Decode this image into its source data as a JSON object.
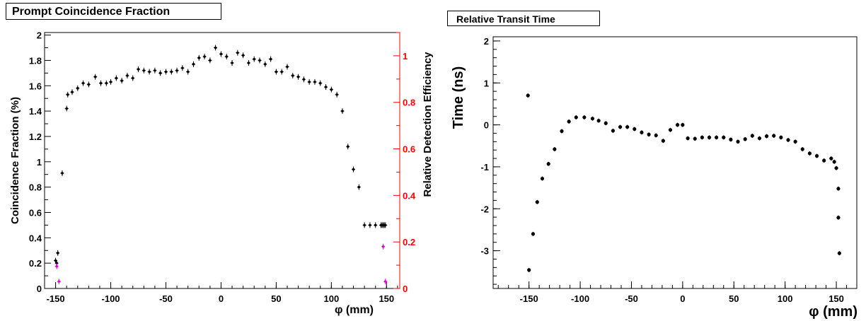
{
  "panels": {
    "left_title": "Prompt Coincidence Fraction",
    "right_title": "Relative Transit Time"
  },
  "colors": {
    "primary": "#000000",
    "secondary_axis": "#ff0000",
    "magenta_series": "#e000e0"
  },
  "chart_data": [
    {
      "type": "scatter",
      "title": "Prompt Coincidence Fraction",
      "xlabel": "φ (mm)",
      "ylabel": "Coincidence Fraction (%)",
      "y2label": "Relative Detection Efficiency",
      "xlim": [
        -160,
        162
      ],
      "ylim": [
        0,
        2.02
      ],
      "y2lim": [
        0,
        1.1
      ],
      "xticks": [
        -150,
        -100,
        -50,
        0,
        50,
        100,
        150
      ],
      "yticks": [
        0,
        0.2,
        0.4,
        0.6,
        0.8,
        1,
        1.2,
        1.4,
        1.6,
        1.8,
        2
      ],
      "y2ticks": [
        0,
        0.2,
        0.4,
        0.6,
        0.8,
        1
      ],
      "series": [
        {
          "axis": "left",
          "color": "#000000",
          "x": [
            -150,
            -149,
            -148,
            -144,
            -140,
            -139,
            -135,
            -130,
            -125,
            -120,
            -114,
            -109,
            -104,
            -100,
            -95,
            -90,
            -85,
            -80,
            -75,
            -70,
            -65,
            -60,
            -55,
            -50,
            -45,
            -40,
            -35,
            -30,
            -25,
            -20,
            -15,
            -10,
            -5,
            0,
            5,
            10,
            15,
            20,
            25,
            30,
            35,
            40,
            45,
            50,
            55,
            60,
            65,
            70,
            75,
            80,
            85,
            90,
            95,
            100,
            105,
            110,
            115,
            120,
            125,
            130,
            135,
            140,
            145,
            146,
            147,
            148,
            149
          ],
          "y": [
            0.22,
            0.2,
            0.28,
            0.91,
            1.42,
            1.53,
            1.55,
            1.58,
            1.62,
            1.61,
            1.67,
            1.62,
            1.62,
            1.63,
            1.66,
            1.64,
            1.68,
            1.66,
            1.73,
            1.72,
            1.71,
            1.72,
            1.7,
            1.71,
            1.71,
            1.72,
            1.74,
            1.71,
            1.77,
            1.82,
            1.83,
            1.8,
            1.9,
            1.85,
            1.83,
            1.78,
            1.86,
            1.84,
            1.78,
            1.81,
            1.8,
            1.77,
            1.81,
            1.71,
            1.71,
            1.75,
            1.68,
            1.67,
            1.65,
            1.63,
            1.63,
            1.62,
            1.59,
            1.57,
            1.53,
            1.4,
            1.12,
            0.94,
            0.8,
            0.5,
            0.5,
            0.5,
            0.5,
            0.5,
            0.5,
            0.5,
            0.5
          ]
        },
        {
          "axis": "right",
          "color": "#e000e0",
          "x": [
            -149,
            -147,
            147,
            149
          ],
          "y": [
            0.095,
            0.03,
            0.18,
            0.03
          ]
        }
      ]
    },
    {
      "type": "scatter",
      "title": "Relative Transit Time",
      "xlabel": "φ (mm)",
      "ylabel": "Time (ns)",
      "xlim": [
        -185,
        170
      ],
      "ylim": [
        -3.9,
        2.1
      ],
      "xticks": [
        -150,
        -100,
        -50,
        0,
        50,
        100,
        150
      ],
      "yticks": [
        -3,
        -2,
        -1,
        0,
        1,
        2
      ],
      "series": [
        {
          "color": "#000000",
          "x": [
            -151,
            -150,
            -146,
            -142,
            -137,
            -131,
            -125,
            -118,
            -111,
            -104,
            -96,
            -88,
            -82,
            -75,
            -68,
            -61,
            -54,
            -47,
            -40,
            -33,
            -26,
            -19,
            -12,
            -5,
            0,
            5,
            12,
            19,
            26,
            33,
            40,
            47,
            54,
            61,
            68,
            75,
            82,
            89,
            96,
            103,
            110,
            117,
            124,
            131,
            138,
            145,
            148,
            150,
            152,
            152,
            153
          ],
          "y": [
            0.7,
            -3.46,
            -2.6,
            -1.84,
            -1.28,
            -0.93,
            -0.58,
            -0.15,
            0.08,
            0.18,
            0.18,
            0.15,
            0.1,
            0.04,
            -0.14,
            -0.05,
            -0.05,
            -0.1,
            -0.18,
            -0.23,
            -0.25,
            -0.38,
            -0.12,
            0.0,
            0.0,
            -0.32,
            -0.33,
            -0.3,
            -0.3,
            -0.3,
            -0.3,
            -0.35,
            -0.4,
            -0.34,
            -0.26,
            -0.32,
            -0.27,
            -0.26,
            -0.3,
            -0.36,
            -0.4,
            -0.58,
            -0.68,
            -0.74,
            -0.85,
            -0.8,
            -0.88,
            -1.03,
            -1.52,
            -2.21,
            -3.06
          ]
        }
      ]
    }
  ]
}
